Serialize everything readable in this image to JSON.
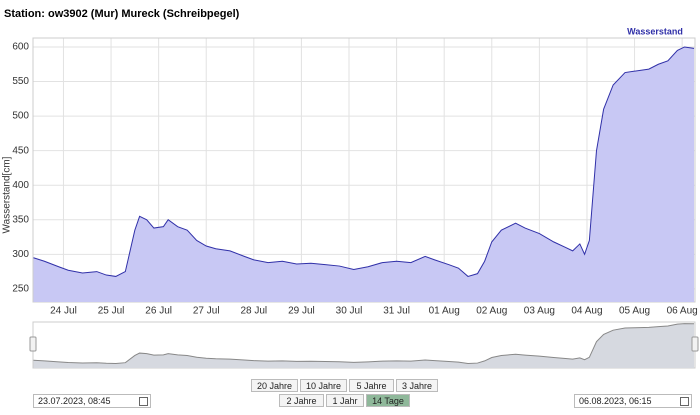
{
  "chart_data": {
    "type": "area",
    "title": "Station: ow3902 (Mur) Mureck (Schreibpegel)",
    "y_label": "Wasserstand[cm]",
    "x": [
      23.37,
      23.6,
      23.9,
      24.1,
      24.4,
      24.7,
      24.9,
      25.1,
      25.3,
      25.5,
      25.6,
      25.75,
      25.9,
      26.1,
      26.2,
      26.4,
      26.6,
      26.8,
      27.0,
      27.2,
      27.5,
      27.8,
      28.0,
      28.3,
      28.6,
      28.9,
      29.2,
      29.5,
      29.8,
      30.1,
      30.4,
      30.7,
      31.0,
      31.3,
      31.6,
      31.8,
      32.1,
      32.3,
      32.5,
      32.7,
      32.85,
      33.0,
      33.2,
      33.5,
      33.7,
      34.0,
      34.3,
      34.55,
      34.7,
      34.85,
      34.95,
      35.05,
      35.2,
      35.35,
      35.55,
      35.8,
      36.0,
      36.3,
      36.5,
      36.7,
      36.9,
      37.05,
      37.25
    ],
    "series": [
      {
        "name": "Wasserstand",
        "color": "#3030a8",
        "fill": "#c8c8f4",
        "values": [
          295,
          290,
          282,
          277,
          273,
          275,
          270,
          268,
          275,
          335,
          355,
          350,
          338,
          340,
          350,
          340,
          335,
          320,
          312,
          308,
          305,
          297,
          292,
          288,
          290,
          286,
          287,
          285,
          283,
          278,
          282,
          288,
          290,
          288,
          297,
          292,
          285,
          280,
          268,
          272,
          290,
          318,
          335,
          345,
          338,
          330,
          318,
          310,
          305,
          315,
          300,
          320,
          450,
          510,
          545,
          563,
          565,
          568,
          575,
          580,
          595,
          600,
          598
        ]
      }
    ],
    "xlim": [
      23.36,
      37.27
    ],
    "xticks": [
      {
        "value": 24,
        "label": "24 Jul"
      },
      {
        "value": 25,
        "label": "25 Jul"
      },
      {
        "value": 26,
        "label": "26 Jul"
      },
      {
        "value": 27,
        "label": "27 Jul"
      },
      {
        "value": 28,
        "label": "28 Jul"
      },
      {
        "value": 29,
        "label": "29 Jul"
      },
      {
        "value": 30,
        "label": "30 Jul"
      },
      {
        "value": 31,
        "label": "31 Jul"
      },
      {
        "value": 32,
        "label": "01 Aug"
      },
      {
        "value": 33,
        "label": "02 Aug"
      },
      {
        "value": 34,
        "label": "03 Aug"
      },
      {
        "value": 35,
        "label": "04 Aug"
      },
      {
        "value": 36,
        "label": "05 Aug"
      },
      {
        "value": 37,
        "label": "06 Aug"
      }
    ],
    "ylim": [
      231,
      613
    ],
    "yticks": [
      250,
      300,
      350,
      400,
      450,
      500,
      550,
      600
    ],
    "grid": true,
    "legend": "top-right"
  },
  "controls": {
    "ranges": [
      "20 Jahre",
      "10 Jahre",
      "5 Jahre",
      "3 Jahre",
      "2 Jahre",
      "1 Jahr",
      "14 Tage"
    ],
    "start": "23.07.2023, 08:45",
    "end": "06.08.2023, 06:15"
  }
}
